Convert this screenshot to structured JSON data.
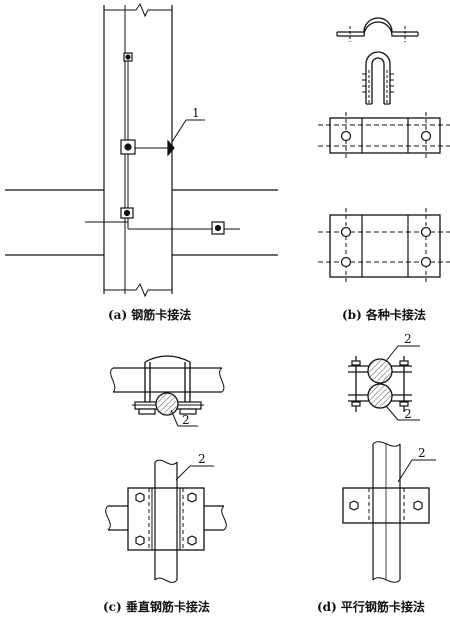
{
  "captions": {
    "a": "(a) 钢筋卡接法",
    "b": "(b) 各种卡接法",
    "c": "(c) 垂直钢筋卡接法",
    "d": "(d) 平行钢筋卡接法"
  },
  "callouts": {
    "a": "1",
    "c1": "2",
    "c2": "2",
    "d1": "2",
    "d2": "2",
    "d3": "2"
  },
  "colors": {
    "ink": "#111111",
    "paper": "#ffffff",
    "hatch": "#555555"
  }
}
